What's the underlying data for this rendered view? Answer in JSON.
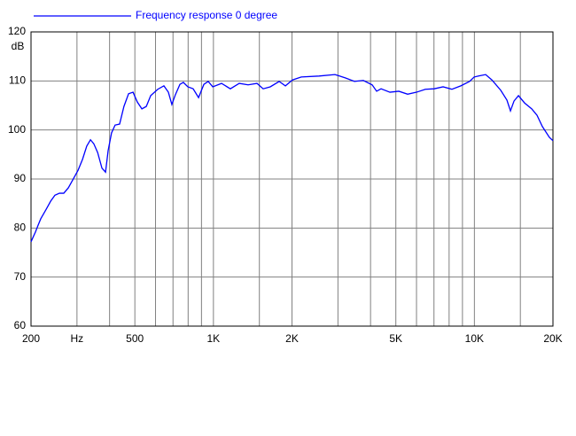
{
  "chart_data": {
    "type": "line",
    "y_label": "dB",
    "log_x": true,
    "grid": true,
    "xlim": [
      200,
      20000
    ],
    "ylim": [
      60,
      120
    ],
    "xticks": [
      200,
      {
        "value": 300,
        "label": "Hz"
      },
      500,
      {
        "value": 1000,
        "label": "1K"
      },
      {
        "value": 2000,
        "label": "2K"
      },
      {
        "value": 5000,
        "label": "5K"
      },
      {
        "value": 10000,
        "label": "10K"
      },
      {
        "value": 20000,
        "label": "20K"
      }
    ],
    "xgrid_minor": [
      400,
      600,
      700,
      800,
      900,
      1500,
      3000,
      4000,
      6000,
      7000,
      8000,
      9000,
      15000
    ],
    "yticks": [
      60,
      70,
      80,
      90,
      100,
      110,
      120
    ],
    "legend": "top-left",
    "x": [
      200,
      208,
      213,
      218,
      228,
      238,
      247,
      257,
      267,
      278,
      289,
      303,
      315,
      327,
      338,
      348,
      360,
      374,
      386,
      395,
      407,
      420,
      437,
      454,
      473,
      492,
      511,
      532,
      553,
      575,
      612,
      646,
      672,
      693,
      715,
      744,
      767,
      798,
      836,
      877,
      919,
      955,
      994,
      1074,
      1161,
      1256,
      1358,
      1469,
      1551,
      1651,
      1786,
      1887,
      2008,
      2171,
      2539,
      2922,
      3209,
      3471,
      3753,
      4058,
      4221,
      4389,
      4746,
      5132,
      5549,
      6000,
      6488,
      7016,
      7586,
      8202,
      8869,
      9590,
      9976,
      10375,
      11044,
      11668,
      12615,
      13322,
      13746,
      14184,
      14750,
      15575,
      16582,
      17379,
      18215,
      19376,
      20000
    ],
    "series": [
      {
        "name": "Frequency response 0 degree",
        "color": "#0000ff",
        "values": [
          77.2,
          79.2,
          80.6,
          81.9,
          83.7,
          85.5,
          86.7,
          87.1,
          87.1,
          88.2,
          89.8,
          91.8,
          94.0,
          96.7,
          98.0,
          97.2,
          95.4,
          92.2,
          91.4,
          95.8,
          99.4,
          101.0,
          101.2,
          104.8,
          107.4,
          107.7,
          105.7,
          104.3,
          104.8,
          107.0,
          108.3,
          109.0,
          107.7,
          105.2,
          107.2,
          109.3,
          109.7,
          108.8,
          108.4,
          106.6,
          109.3,
          109.9,
          108.8,
          109.5,
          108.4,
          109.5,
          109.2,
          109.5,
          108.4,
          108.8,
          109.9,
          109.0,
          110.2,
          110.8,
          111.0,
          111.3,
          110.6,
          109.9,
          110.1,
          109.2,
          107.9,
          108.4,
          107.7,
          107.9,
          107.3,
          107.7,
          108.3,
          108.4,
          108.8,
          108.3,
          109.0,
          109.9,
          110.8,
          111.0,
          111.3,
          110.2,
          108.1,
          106.1,
          103.9,
          105.9,
          107.0,
          105.5,
          104.3,
          103.0,
          100.7,
          98.5,
          97.8
        ]
      }
    ]
  }
}
